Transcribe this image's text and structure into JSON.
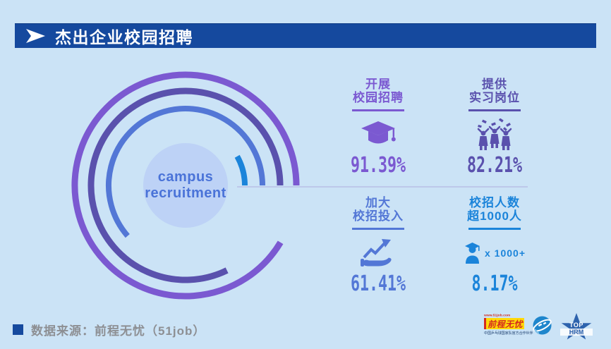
{
  "header": {
    "title": "杰出企业校园招聘"
  },
  "chart_data": {
    "type": "radial-progress",
    "unit": "%",
    "direction": "counterclockwise",
    "start_angle_deg": 0,
    "center": {
      "x": 263,
      "y": 263,
      "radius": 60,
      "fill": "#bdd2f6"
    },
    "center_label_line1": "campus",
    "center_label_line2": "recruitment",
    "series": [
      {
        "name": "开展校园招聘",
        "value": 91.39,
        "color": "#7b59d1",
        "radius": 157,
        "stroke_width": 9
      },
      {
        "name": "提供实习岗位",
        "value": 82.21,
        "color": "#5a51ad",
        "radius": 134,
        "stroke_width": 9
      },
      {
        "name": "加大校招投入",
        "value": 61.41,
        "color": "#5377d6",
        "radius": 109,
        "stroke_width": 8
      },
      {
        "name": "校招人数超1000人",
        "value": 8.17,
        "color": "#1b84da",
        "radius": 84,
        "stroke_width": 8
      }
    ]
  },
  "stats": [
    {
      "title": [
        "开展",
        "校园招聘"
      ],
      "value": "91.39%",
      "color": "#7b59d1",
      "icon": "graduation-cap-icon"
    },
    {
      "title": [
        "提供",
        "实习岗位"
      ],
      "value": "82.21%",
      "color": "#5a51ad",
      "icon": "celebrating-people-icon"
    },
    {
      "title": [
        "加大",
        "校招投入"
      ],
      "value": "61.41%",
      "color": "#5377d6",
      "icon": "hand-growth-arrow-icon"
    },
    {
      "title": [
        "校招人数",
        "超1000人"
      ],
      "value": "8.17%",
      "color": "#1b84da",
      "icon": "graduate-person-icon",
      "icon_caption": "x 1000+"
    }
  ],
  "footer": {
    "source_text": "数据来源：前程无忧（51job）"
  },
  "logos": {
    "url_text": "www.51job.com",
    "brand_name": "前程无忧",
    "partner_text": "中国乒乓球国家队官方合作伙伴",
    "star_top": "TOP",
    "star_bottom": "HRM"
  },
  "colors": {
    "background": "#cbe3f6",
    "header_bar": "#15499e",
    "connector_line": "#bdc8ea",
    "center_text": "#4a73d8",
    "footer_text": "#8d8f93"
  }
}
